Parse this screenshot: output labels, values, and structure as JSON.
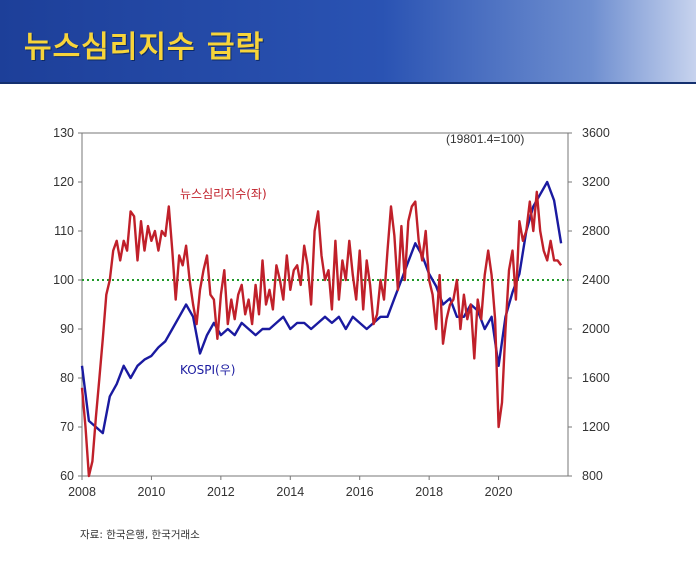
{
  "page": {
    "title": "뉴스심리지수 급락",
    "source": "자료: 한국은행, 한국거래소"
  },
  "chart_data": {
    "type": "line",
    "note": "(19801.4=100)",
    "xlim": [
      2008,
      2022
    ],
    "x_ticks": [
      2008,
      2010,
      2012,
      2014,
      2016,
      2018,
      2020
    ],
    "left_axis": {
      "lim": [
        60,
        130
      ],
      "ticks": [
        60,
        70,
        80,
        90,
        100,
        110,
        120,
        130
      ]
    },
    "right_axis": {
      "lim": [
        800,
        3600
      ],
      "ticks": [
        800,
        1200,
        1600,
        2000,
        2400,
        2800,
        3200,
        3600
      ]
    },
    "reference_line": {
      "axis": "left",
      "value": 100,
      "color": "#1f9a2a",
      "style": "dotted"
    },
    "series": [
      {
        "name": "뉴스심리지수(좌)",
        "axis": "left",
        "color": "#c0202a",
        "x": [
          2008.0,
          2008.1,
          2008.2,
          2008.3,
          2008.4,
          2008.5,
          2008.6,
          2008.7,
          2008.8,
          2008.9,
          2009.0,
          2009.1,
          2009.2,
          2009.3,
          2009.4,
          2009.5,
          2009.6,
          2009.7,
          2009.8,
          2009.9,
          2010.0,
          2010.1,
          2010.2,
          2010.3,
          2010.4,
          2010.5,
          2010.6,
          2010.7,
          2010.8,
          2010.9,
          2011.0,
          2011.1,
          2011.2,
          2011.3,
          2011.4,
          2011.5,
          2011.6,
          2011.7,
          2011.8,
          2011.9,
          2012.0,
          2012.1,
          2012.2,
          2012.3,
          2012.4,
          2012.5,
          2012.6,
          2012.7,
          2012.8,
          2012.9,
          2013.0,
          2013.1,
          2013.2,
          2013.3,
          2013.4,
          2013.5,
          2013.6,
          2013.7,
          2013.8,
          2013.9,
          2014.0,
          2014.1,
          2014.2,
          2014.3,
          2014.4,
          2014.5,
          2014.6,
          2014.7,
          2014.8,
          2014.9,
          2015.0,
          2015.1,
          2015.2,
          2015.3,
          2015.4,
          2015.5,
          2015.6,
          2015.7,
          2015.8,
          2015.9,
          2016.0,
          2016.1,
          2016.2,
          2016.3,
          2016.4,
          2016.5,
          2016.6,
          2016.7,
          2016.8,
          2016.9,
          2017.0,
          2017.1,
          2017.2,
          2017.3,
          2017.4,
          2017.5,
          2017.6,
          2017.7,
          2017.8,
          2017.9,
          2018.0,
          2018.1,
          2018.2,
          2018.3,
          2018.4,
          2018.5,
          2018.6,
          2018.7,
          2018.8,
          2018.9,
          2019.0,
          2019.1,
          2019.2,
          2019.3,
          2019.4,
          2019.5,
          2019.6,
          2019.7,
          2019.8,
          2019.9,
          2020.0,
          2020.1,
          2020.2,
          2020.3,
          2020.4,
          2020.5,
          2020.6,
          2020.7,
          2020.8,
          2020.9,
          2021.0,
          2021.1,
          2021.2,
          2021.3,
          2021.4,
          2021.5,
          2021.6,
          2021.7,
          2021.8
        ],
        "values": [
          78,
          70,
          60,
          63,
          72,
          80,
          88,
          97,
          100,
          106,
          108,
          104,
          108,
          106,
          114,
          113,
          104,
          112,
          106,
          111,
          108,
          110,
          106,
          110,
          109,
          115,
          106,
          96,
          105,
          103,
          107,
          100,
          95,
          91,
          98,
          102,
          105,
          97,
          96,
          88,
          97,
          102,
          91,
          96,
          92,
          97,
          99,
          93,
          96,
          91,
          99,
          93,
          104,
          95,
          98,
          94,
          103,
          100,
          96,
          105,
          98,
          102,
          103,
          99,
          107,
          103,
          95,
          110,
          114,
          105,
          100,
          102,
          94,
          108,
          96,
          104,
          100,
          108,
          101,
          96,
          106,
          94,
          104,
          99,
          91,
          93,
          100,
          96,
          106,
          115,
          109,
          98,
          111,
          100,
          112,
          115,
          116,
          108,
          104,
          110,
          100,
          97,
          90,
          101,
          87,
          92,
          95,
          96,
          100,
          90,
          97,
          92,
          95,
          84,
          96,
          92,
          101,
          106,
          101,
          92,
          70,
          75,
          90,
          102,
          106,
          96,
          112,
          108,
          110,
          116,
          110,
          118,
          110,
          106,
          104,
          108,
          104,
          104,
          103
        ]
      },
      {
        "name": "KOSPI(우)",
        "axis": "right",
        "color": "#1a1aa0",
        "x": [
          2008.0,
          2008.2,
          2008.4,
          2008.6,
          2008.8,
          2009.0,
          2009.2,
          2009.4,
          2009.6,
          2009.8,
          2010.0,
          2010.2,
          2010.4,
          2010.6,
          2010.8,
          2011.0,
          2011.2,
          2011.4,
          2011.6,
          2011.8,
          2012.0,
          2012.2,
          2012.4,
          2012.6,
          2012.8,
          2013.0,
          2013.2,
          2013.4,
          2013.6,
          2013.8,
          2014.0,
          2014.2,
          2014.4,
          2014.6,
          2014.8,
          2015.0,
          2015.2,
          2015.4,
          2015.6,
          2015.8,
          2016.0,
          2016.2,
          2016.4,
          2016.6,
          2016.8,
          2017.0,
          2017.2,
          2017.4,
          2017.6,
          2017.8,
          2018.0,
          2018.2,
          2018.4,
          2018.6,
          2018.8,
          2019.0,
          2019.2,
          2019.4,
          2019.6,
          2019.8,
          2020.0,
          2020.2,
          2020.4,
          2020.6,
          2020.8,
          2021.0,
          2021.2,
          2021.4,
          2021.6,
          2021.8
        ],
        "values": [
          1700,
          1250,
          1200,
          1150,
          1450,
          1550,
          1700,
          1600,
          1700,
          1750,
          1780,
          1850,
          1900,
          2000,
          2100,
          2200,
          2100,
          1800,
          1950,
          2050,
          1950,
          2000,
          1950,
          2050,
          2000,
          1950,
          2000,
          2000,
          2050,
          2100,
          2000,
          2050,
          2050,
          2000,
          2050,
          2100,
          2050,
          2100,
          2000,
          2100,
          2050,
          2000,
          2050,
          2100,
          2100,
          2250,
          2400,
          2550,
          2700,
          2600,
          2450,
          2350,
          2200,
          2250,
          2100,
          2100,
          2200,
          2150,
          2000,
          2100,
          1700,
          2100,
          2300,
          2450,
          2800,
          3000,
          3100,
          3200,
          3050,
          2700
        ]
      }
    ]
  }
}
